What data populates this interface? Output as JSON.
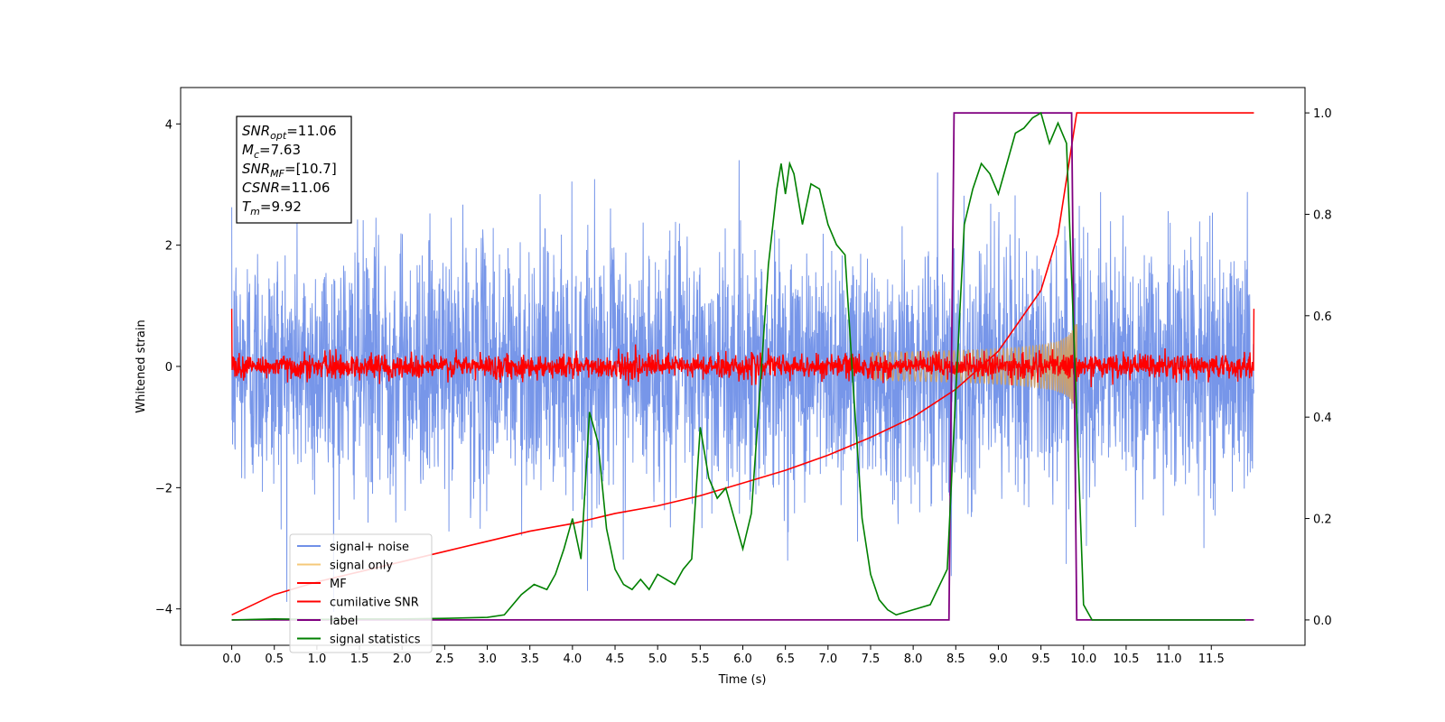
{
  "chart_data": {
    "type": "line",
    "xlabel": "Time (s)",
    "ylabel": "Whitened strain",
    "xlim": [
      -0.6,
      12.6
    ],
    "ylim_left": [
      -4.6,
      4.6
    ],
    "ylim_right": [
      -0.05,
      1.05
    ],
    "x_ticks": [
      0.0,
      0.5,
      1.0,
      1.5,
      2.0,
      2.5,
      3.0,
      3.5,
      4.0,
      4.5,
      5.0,
      5.5,
      6.0,
      6.5,
      7.0,
      7.5,
      8.0,
      8.5,
      9.0,
      9.5,
      10.0,
      10.5,
      11.0,
      11.5
    ],
    "x_tick_labels": [
      "0.0",
      "0.5",
      "1.0",
      "1.5",
      "2.0",
      "2.5",
      "3.0",
      "3.5",
      "4.0",
      "4.5",
      "5.0",
      "5.5",
      "6.0",
      "6.5",
      "7.0",
      "7.5",
      "8.0",
      "8.5",
      "9.0",
      "9.5",
      "10.0",
      "10.5",
      "11.0",
      "11.5"
    ],
    "y_left_ticks": [
      -4,
      -2,
      0,
      2,
      4
    ],
    "y_left_tick_labels": [
      "−4",
      "−2",
      "0",
      "2",
      "4"
    ],
    "y_right_ticks": [
      0.0,
      0.2,
      0.4,
      0.6,
      0.8,
      1.0
    ],
    "y_right_tick_labels": [
      "0.0",
      "0.2",
      "0.4",
      "0.6",
      "0.8",
      "1.0"
    ],
    "grid": false,
    "legend_position": "bottom-left",
    "annotation": {
      "lines": [
        {
          "base": "SNR",
          "sub": "opt",
          "value": "=11.06"
        },
        {
          "base": "M",
          "sub": "c",
          "value": "=7.63"
        },
        {
          "base": "SNR",
          "sub": "MF",
          "value": "=[10.7]"
        },
        {
          "base": "CSNR",
          "sub": "",
          "value": "=11.06"
        },
        {
          "base": "T",
          "sub": "m",
          "value": "=9.92"
        }
      ]
    },
    "series": [
      {
        "name": "signal+ noise",
        "axis": "left",
        "color": "#7090e8",
        "noise_amplitude": 1.0,
        "x_range": [
          0.0,
          12.0
        ]
      },
      {
        "name": "signal only",
        "axis": "left",
        "color": "#f5c87a",
        "chirp_end": 9.92,
        "peak_amplitude": 0.6
      },
      {
        "name": "MF",
        "axis": "left",
        "color": "#ff0000",
        "noise_amplitude": 0.1
      },
      {
        "name": "cumilative SNR",
        "axis": "right",
        "color": "#ff0000",
        "x": [
          0.0,
          0.5,
          1.0,
          1.5,
          2.0,
          2.5,
          3.0,
          3.5,
          4.0,
          4.5,
          5.0,
          5.5,
          6.0,
          6.5,
          7.0,
          7.5,
          8.0,
          8.5,
          9.0,
          9.5,
          9.7,
          9.92,
          10.0,
          12.0
        ],
        "y": [
          0.01,
          0.05,
          0.075,
          0.095,
          0.115,
          0.135,
          0.155,
          0.175,
          0.19,
          0.21,
          0.225,
          0.245,
          0.27,
          0.295,
          0.325,
          0.36,
          0.4,
          0.455,
          0.53,
          0.65,
          0.76,
          1.0,
          1.0,
          1.0
        ]
      },
      {
        "name": "label",
        "axis": "right",
        "color": "#800080",
        "x": [
          0.0,
          8.42,
          8.48,
          9.86,
          9.92,
          12.0
        ],
        "y": [
          0.0,
          0.0,
          1.0,
          1.0,
          0.0,
          0.0
        ]
      },
      {
        "name": "signal statistics",
        "axis": "right",
        "color": "#008000",
        "x": [
          0.0,
          0.5,
          1.0,
          1.5,
          2.0,
          2.5,
          3.0,
          3.2,
          3.4,
          3.55,
          3.7,
          3.8,
          3.9,
          4.0,
          4.1,
          4.2,
          4.3,
          4.4,
          4.5,
          4.6,
          4.7,
          4.8,
          4.9,
          5.0,
          5.1,
          5.2,
          5.3,
          5.4,
          5.5,
          5.55,
          5.6,
          5.7,
          5.8,
          5.9,
          6.0,
          6.1,
          6.2,
          6.3,
          6.4,
          6.45,
          6.5,
          6.55,
          6.6,
          6.7,
          6.8,
          6.9,
          7.0,
          7.1,
          7.2,
          7.3,
          7.4,
          7.5,
          7.6,
          7.7,
          7.8,
          8.0,
          8.2,
          8.4,
          8.5,
          8.6,
          8.7,
          8.8,
          8.9,
          9.0,
          9.1,
          9.2,
          9.3,
          9.4,
          9.5,
          9.6,
          9.7,
          9.8,
          9.9,
          10.0,
          10.1,
          10.5,
          11.0,
          11.5,
          11.9
        ],
        "y": [
          0.0,
          0.002,
          0.001,
          0.002,
          0.002,
          0.003,
          0.005,
          0.01,
          0.05,
          0.07,
          0.06,
          0.09,
          0.14,
          0.2,
          0.12,
          0.41,
          0.35,
          0.18,
          0.1,
          0.07,
          0.06,
          0.08,
          0.06,
          0.09,
          0.08,
          0.07,
          0.1,
          0.12,
          0.38,
          0.33,
          0.28,
          0.24,
          0.26,
          0.2,
          0.14,
          0.21,
          0.45,
          0.7,
          0.85,
          0.9,
          0.84,
          0.9,
          0.88,
          0.78,
          0.86,
          0.85,
          0.78,
          0.74,
          0.72,
          0.45,
          0.2,
          0.09,
          0.04,
          0.02,
          0.01,
          0.02,
          0.03,
          0.1,
          0.45,
          0.78,
          0.85,
          0.9,
          0.88,
          0.84,
          0.9,
          0.96,
          0.97,
          0.99,
          1.0,
          0.94,
          0.98,
          0.94,
          0.5,
          0.03,
          0.0,
          0.0,
          0.0,
          0.0,
          0.0
        ]
      }
    ]
  }
}
